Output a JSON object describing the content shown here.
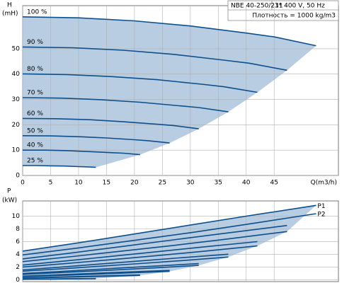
{
  "chart_data": [
    {
      "type": "line",
      "y_label": "H",
      "y_unit": "(mH)",
      "x_label": "Q(m3/h)",
      "annotations": [
        "NBE 40-250/211",
        "3* 400 V, 50 Hz",
        "Плотность = 1000 kg/m3"
      ],
      "xlim": [
        0,
        56.5
      ],
      "ylim": [
        0,
        67
      ],
      "xticks": [
        0,
        5,
        10,
        15,
        20,
        25,
        30,
        35,
        40,
        45
      ],
      "yticks": [
        0,
        10,
        20,
        30,
        40,
        50
      ],
      "grid": true,
      "xtick_labels": true,
      "fill_color": "#b8cce2",
      "label_series_start": true,
      "series": [
        {
          "name": "100 %",
          "color": "#0d4f8c",
          "x": [
            0,
            10,
            20,
            30,
            40,
            45,
            52.5
          ],
          "values": [
            62.6,
            62.2,
            61,
            59,
            56.2,
            54.7,
            51.2
          ]
        },
        {
          "name": "90 %",
          "color": "#0d4f8c",
          "x": [
            0,
            9,
            18,
            27,
            36,
            40.5,
            47.3
          ],
          "values": [
            50.7,
            50.4,
            49.4,
            47.8,
            45.5,
            44.3,
            41.5
          ]
        },
        {
          "name": "80 %",
          "color": "#0d4f8c",
          "x": [
            0,
            8,
            16,
            24,
            32,
            36,
            42
          ],
          "values": [
            40.1,
            39.8,
            39.0,
            37.8,
            36.0,
            35.0,
            32.8
          ]
        },
        {
          "name": "70 %",
          "color": "#0d4f8c",
          "x": [
            0,
            7,
            14,
            21,
            28,
            31.5,
            36.8
          ],
          "values": [
            30.7,
            30.5,
            29.9,
            28.9,
            27.5,
            26.8,
            25.1
          ]
        },
        {
          "name": "60 %",
          "color": "#0d4f8c",
          "x": [
            0,
            6,
            12,
            18,
            24,
            27,
            31.5
          ],
          "values": [
            22.5,
            22.4,
            22.0,
            21.2,
            20.2,
            19.7,
            18.4
          ]
        },
        {
          "name": "50 %",
          "color": "#0d4f8c",
          "x": [
            0,
            5,
            10,
            15,
            20,
            22.5,
            26.3
          ],
          "values": [
            15.7,
            15.6,
            15.3,
            14.8,
            14.1,
            13.7,
            12.8
          ]
        },
        {
          "name": "40 %",
          "color": "#0d4f8c",
          "x": [
            0,
            4,
            8,
            12,
            16,
            18,
            21
          ],
          "values": [
            10.0,
            10.0,
            9.8,
            9.4,
            9.0,
            8.8,
            8.2
          ]
        },
        {
          "name": "25 %",
          "color": "#0d4f8c",
          "x": [
            0,
            2.5,
            5,
            7.5,
            10,
            11.3,
            13.1
          ],
          "values": [
            3.9,
            3.9,
            3.8,
            3.7,
            3.5,
            3.4,
            3.2
          ]
        }
      ]
    },
    {
      "type": "line",
      "y_label": "P",
      "y_unit": "(kW)",
      "xlim": [
        0,
        56.5
      ],
      "ylim": [
        -0.3,
        12.4
      ],
      "xticks": [
        0,
        5,
        10,
        15,
        20,
        25,
        30,
        35,
        40,
        45
      ],
      "yticks": [
        0,
        2,
        4,
        6,
        8,
        10
      ],
      "grid": true,
      "xtick_labels": false,
      "fill_color": "#b8cce2",
      "label_series_start": false,
      "series": [
        {
          "name": "P1",
          "color": "#0d4f8c",
          "x": [
            0,
            10,
            20,
            30,
            40,
            52.5
          ],
          "values": [
            4.5,
            5.8,
            7.2,
            8.6,
            10.0,
            11.7
          ]
        },
        {
          "color": "#0d4f8c",
          "x": [
            0,
            9,
            18,
            27,
            36,
            47.3
          ],
          "values": [
            3.28,
            4.23,
            5.25,
            6.27,
            7.29,
            8.53
          ]
        },
        {
          "color": "#0d4f8c",
          "x": [
            0,
            8,
            16,
            24,
            32,
            42
          ],
          "values": [
            2.3,
            2.97,
            3.69,
            4.4,
            5.12,
            5.99
          ]
        },
        {
          "color": "#0d4f8c",
          "x": [
            0,
            7,
            14,
            21,
            28,
            36.8
          ],
          "values": [
            1.54,
            1.99,
            2.47,
            2.95,
            3.43,
            4.01
          ]
        },
        {
          "color": "#0d4f8c",
          "x": [
            0,
            6,
            12,
            18,
            24,
            31.5
          ],
          "values": [
            0.97,
            1.25,
            1.56,
            1.86,
            2.16,
            2.53
          ]
        },
        {
          "color": "#0d4f8c",
          "x": [
            0,
            5,
            10,
            15,
            20,
            26.3
          ],
          "values": [
            0.56,
            0.73,
            0.9,
            1.08,
            1.25,
            1.46
          ]
        },
        {
          "color": "#0d4f8c",
          "x": [
            0,
            4,
            8,
            12,
            16,
            21
          ],
          "values": [
            0.29,
            0.37,
            0.46,
            0.55,
            0.64,
            0.75
          ]
        },
        {
          "color": "#0d4f8c",
          "x": [
            0,
            2.5,
            5,
            7.5,
            10,
            13.1
          ],
          "values": [
            0.07,
            0.09,
            0.11,
            0.13,
            0.16,
            0.18
          ]
        },
        {
          "name": "P2",
          "color": "#0d4f8c",
          "x": [
            0,
            10,
            20,
            30,
            40,
            52.5
          ],
          "values": [
            3.9,
            5.0,
            6.2,
            7.4,
            8.7,
            10.4
          ]
        },
        {
          "color": "#0d4f8c",
          "x": [
            0,
            9,
            18,
            27,
            36,
            47.3
          ],
          "values": [
            2.84,
            3.65,
            4.52,
            5.39,
            6.34,
            7.58
          ]
        },
        {
          "color": "#0d4f8c",
          "x": [
            0,
            8,
            16,
            24,
            32,
            42
          ],
          "values": [
            2.0,
            2.56,
            3.17,
            3.79,
            4.45,
            5.32
          ]
        },
        {
          "color": "#0d4f8c",
          "x": [
            0,
            7,
            14,
            21,
            28,
            36.8
          ],
          "values": [
            1.34,
            1.72,
            2.13,
            2.54,
            2.98,
            3.57
          ]
        },
        {
          "color": "#0d4f8c",
          "x": [
            0,
            6,
            12,
            18,
            24,
            31.5
          ],
          "values": [
            0.84,
            1.08,
            1.34,
            1.6,
            1.88,
            2.25
          ]
        },
        {
          "color": "#0d4f8c",
          "x": [
            0,
            5,
            10,
            15,
            20,
            26.3
          ],
          "values": [
            0.49,
            0.63,
            0.78,
            0.93,
            1.09,
            1.3
          ]
        },
        {
          "color": "#0d4f8c",
          "x": [
            0,
            4,
            8,
            12,
            16,
            21
          ],
          "values": [
            0.25,
            0.32,
            0.4,
            0.47,
            0.56,
            0.67
          ]
        },
        {
          "color": "#0d4f8c",
          "x": [
            0,
            2.5,
            5,
            7.5,
            10,
            13.1
          ],
          "values": [
            0.06,
            0.08,
            0.1,
            0.12,
            0.14,
            0.16
          ]
        }
      ]
    }
  ]
}
